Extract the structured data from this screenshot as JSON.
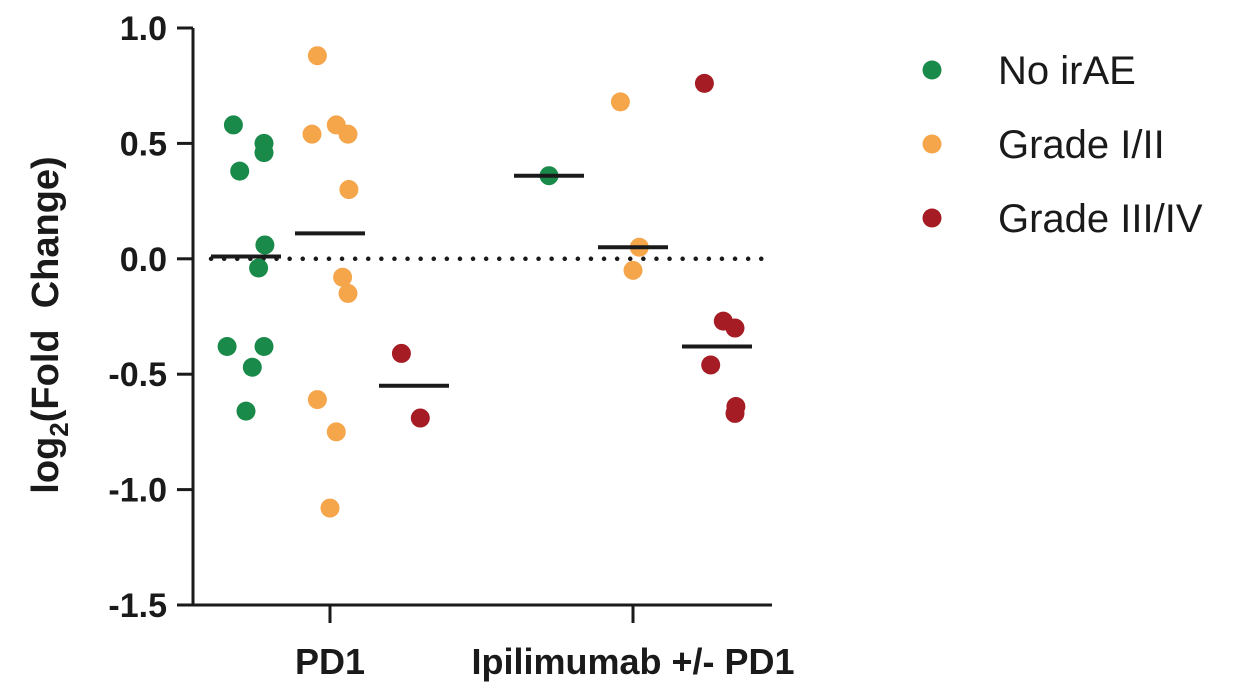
{
  "chart_data": {
    "type": "scatter",
    "ylabel": {
      "prefix": "log",
      "subscript": "2",
      "suffix": "(Fold  Change)"
    },
    "ylim": [
      -1.5,
      1.0
    ],
    "yticks": [
      {
        "value": 1.0,
        "label": "1.0"
      },
      {
        "value": 0.5,
        "label": "0.5"
      },
      {
        "value": 0.0,
        "label": "0.0"
      },
      {
        "value": -0.5,
        "label": "-0.5"
      },
      {
        "value": -1.0,
        "label": "-1.0"
      },
      {
        "value": -1.5,
        "label": "-1.5"
      }
    ],
    "reference_line": {
      "y": 0.0,
      "style": "dotted"
    },
    "categories": [
      "PD1",
      "Ipilimumab +/- PD1"
    ],
    "legend_position": "right",
    "series": [
      {
        "name": "No irAE",
        "color": "#1a8a4a"
      },
      {
        "name": "Grade I/II",
        "color": "#f5a54a"
      },
      {
        "name": "Grade III/IV",
        "color": "#a51c24"
      }
    ],
    "groups": [
      {
        "category": "PD1",
        "series": "No irAE",
        "median": 0.01,
        "points": [
          0.58,
          0.5,
          0.46,
          0.38,
          0.06,
          -0.04,
          -0.38,
          -0.38,
          -0.47,
          -0.66
        ]
      },
      {
        "category": "PD1",
        "series": "Grade I/II",
        "median": 0.11,
        "points": [
          0.88,
          0.58,
          0.54,
          0.54,
          0.3,
          -0.08,
          -0.15,
          -0.61,
          -0.75,
          -1.08
        ]
      },
      {
        "category": "PD1",
        "series": "Grade III/IV",
        "median": -0.55,
        "points": [
          -0.41,
          -0.69
        ]
      },
      {
        "category": "Ipilimumab +/- PD1",
        "series": "No irAE",
        "median": 0.36,
        "points": [
          0.36
        ]
      },
      {
        "category": "Ipilimumab +/- PD1",
        "series": "Grade I/II",
        "median": 0.05,
        "points": [
          0.68,
          0.05,
          -0.05
        ]
      },
      {
        "category": "Ipilimumab +/- PD1",
        "series": "Grade III/IV",
        "median": -0.38,
        "points": [
          0.76,
          -0.27,
          -0.3,
          -0.46,
          -0.64,
          -0.67
        ]
      }
    ]
  }
}
